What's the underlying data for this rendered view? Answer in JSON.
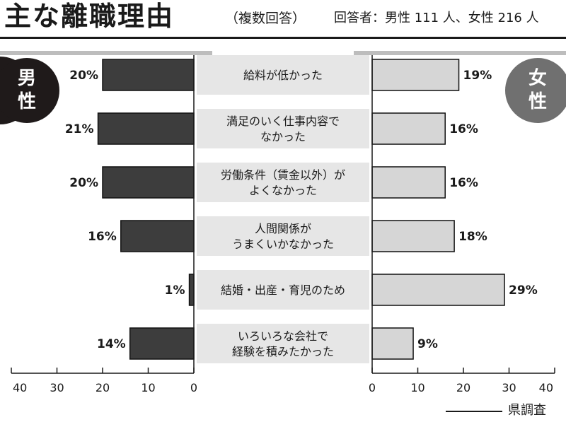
{
  "header": {
    "title": "主な離職理由",
    "subtitle": "（複数回答）",
    "respondents": "回答者：男性 111 人、女性 216 人"
  },
  "source": "県調査",
  "colors": {
    "male_bar": "#3d3d3d",
    "female_bar": "#d6d6d6",
    "male_badge": "#1f1a1a",
    "female_badge": "#707070",
    "category_band": "#e6e6e6"
  },
  "chart_data": {
    "type": "bar",
    "orientation": "horizontal-butterfly",
    "categories": [
      [
        "給料が低かった"
      ],
      [
        "満足のいく仕事内容で",
        "なかった"
      ],
      [
        "労働条件（賃金以外）が",
        "よくなかった"
      ],
      [
        "人間関係が",
        "うまくいかなかった"
      ],
      [
        "結婚・出産・育児のため"
      ],
      [
        "いろいろな会社で",
        "経験を積みたかった"
      ]
    ],
    "series": [
      {
        "name": "男性",
        "badge": [
          "男",
          "性"
        ],
        "side": "left",
        "values": [
          20,
          21,
          20,
          16,
          1,
          14
        ],
        "labels": [
          "20%",
          "21%",
          "20%",
          "16%",
          "1%",
          "14%"
        ]
      },
      {
        "name": "女性",
        "badge": [
          "女",
          "性"
        ],
        "side": "right",
        "values": [
          19,
          16,
          16,
          18,
          29,
          9
        ],
        "labels": [
          "19%",
          "16%",
          "16%",
          "18%",
          "29%",
          "9%"
        ]
      }
    ],
    "xlim": [
      0,
      40
    ],
    "xticks": [
      "40",
      "30",
      "20",
      "10",
      "0"
    ],
    "xticks_right": [
      "0",
      "10",
      "20",
      "30",
      "40"
    ],
    "grid": false,
    "legend": "badges"
  }
}
